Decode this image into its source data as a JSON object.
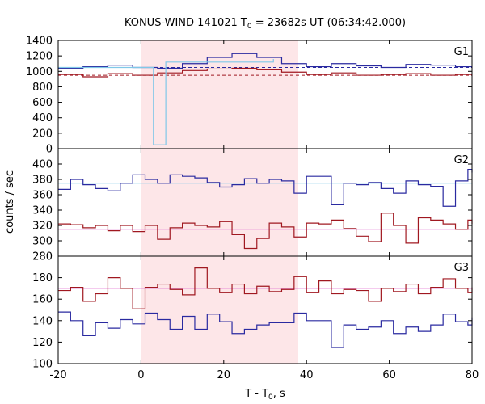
{
  "chart_data": {
    "type": "line",
    "title_main": "KONUS-WIND 141021 T",
    "title_sub": "0",
    "title_rest": " = 23682s UT (06:34:42.000)",
    "xlabel_main": "T - T",
    "xlabel_sub": "0",
    "xlabel_rest": ", s",
    "ylabel": "counts / sec",
    "xlim": [
      -20,
      80
    ],
    "x_ticks": [
      -20,
      0,
      20,
      40,
      60,
      80
    ],
    "x_tick_labels": [
      "-20",
      "0",
      "20",
      "40",
      "60",
      "80"
    ],
    "highlight": {
      "x0": 0,
      "x1": 38,
      "color": "#fde6e8"
    },
    "colors": {
      "blue": "#2a2aa0",
      "red": "#a01820",
      "cyan": "#80c8e8",
      "pink": "#e070d0"
    },
    "panels": [
      {
        "label": "G1",
        "ylim": [
          0,
          1400
        ],
        "y_ticks": [
          0,
          200,
          400,
          600,
          800,
          1000,
          1200,
          1400
        ],
        "y_tick_labels": [
          "0",
          "200",
          "400",
          "600",
          "800",
          "1000",
          "1200",
          "1400"
        ],
        "bg_lines": [
          {
            "y": 1050,
            "color": "#2a2aa0",
            "dashed": true
          },
          {
            "y": 950,
            "color": "#a01820",
            "dashed": true
          }
        ],
        "series": [
          {
            "color": "#2a2aa0",
            "edges": [
              -20,
              -14,
              -8,
              -2,
              4,
              10,
              16,
              22,
              28,
              34,
              40,
              46,
              52,
              58,
              64,
              70,
              76,
              80
            ],
            "values": [
              1040,
              1060,
              1080,
              1050,
              1040,
              1100,
              1180,
              1230,
              1180,
              1100,
              1060,
              1100,
              1070,
              1050,
              1090,
              1080,
              1060
            ]
          },
          {
            "color": "#a01820",
            "edges": [
              -20,
              -14,
              -8,
              -2,
              4,
              10,
              16,
              22,
              28,
              34,
              40,
              46,
              52,
              58,
              64,
              70,
              76,
              80
            ],
            "values": [
              960,
              930,
              970,
              950,
              980,
              1010,
              1030,
              1040,
              1020,
              990,
              960,
              980,
              950,
              960,
              970,
              950,
              960
            ]
          },
          {
            "color": "#80c8e8",
            "edges": [
              -20,
              3,
              6,
              32
            ],
            "values": [
              1050,
              50,
              1120,
              1160
            ]
          }
        ]
      },
      {
        "label": "G2",
        "ylim": [
          280,
          420
        ],
        "y_ticks": [
          280,
          300,
          320,
          340,
          360,
          380,
          400
        ],
        "y_tick_labels": [
          "280",
          "300",
          "320",
          "340",
          "360",
          "380",
          "400"
        ],
        "bg_lines": [
          {
            "y": 375,
            "color": "#80c8e8",
            "dashed": false
          },
          {
            "y": 315,
            "color": "#e070d0",
            "dashed": false
          }
        ],
        "series": [
          {
            "color": "#2a2aa0",
            "edges": [
              -20,
              -17,
              -14,
              -11,
              -8,
              -5,
              -2,
              1,
              4,
              7,
              10,
              13,
              16,
              19,
              22,
              25,
              28,
              31,
              34,
              37,
              40,
              43,
              46,
              49,
              52,
              55,
              58,
              61,
              64,
              67,
              70,
              73,
              76,
              79,
              80
            ],
            "values": [
              367,
              380,
              373,
              368,
              365,
              375,
              386,
              380,
              375,
              386,
              384,
              382,
              376,
              370,
              373,
              381,
              375,
              380,
              378,
              362,
              384,
              384,
              347,
              375,
              373,
              376,
              368,
              362,
              378,
              373,
              371,
              345,
              378,
              393,
              389
            ]
          },
          {
            "color": "#a01820",
            "edges": [
              -20,
              -17,
              -14,
              -11,
              -8,
              -5,
              -2,
              1,
              4,
              7,
              10,
              13,
              16,
              19,
              22,
              25,
              28,
              31,
              34,
              37,
              40,
              43,
              46,
              49,
              52,
              55,
              58,
              61,
              64,
              67,
              70,
              73,
              76,
              79,
              80
            ],
            "values": [
              322,
              321,
              317,
              320,
              313,
              320,
              312,
              320,
              302,
              317,
              323,
              320,
              318,
              325,
              308,
              290,
              303,
              323,
              318,
              305,
              323,
              322,
              327,
              316,
              306,
              299,
              336,
              320,
              297,
              330,
              327,
              322,
              315,
              327,
              322
            ]
          }
        ]
      },
      {
        "label": "G3",
        "ylim": [
          100,
          200
        ],
        "y_ticks": [
          100,
          120,
          140,
          160,
          180
        ],
        "y_tick_labels": [
          "100",
          "120",
          "140",
          "160",
          "180"
        ],
        "bg_lines": [
          {
            "y": 135,
            "color": "#80c8e8",
            "dashed": false
          },
          {
            "y": 170,
            "color": "#e070d0",
            "dashed": false
          }
        ],
        "series": [
          {
            "color": "#2a2aa0",
            "edges": [
              -20,
              -17,
              -14,
              -11,
              -8,
              -5,
              -2,
              1,
              4,
              7,
              10,
              13,
              16,
              19,
              22,
              25,
              28,
              31,
              34,
              37,
              40,
              43,
              46,
              49,
              52,
              55,
              58,
              61,
              64,
              67,
              70,
              73,
              76,
              79,
              80
            ],
            "values": [
              148,
              140,
              126,
              138,
              133,
              141,
              137,
              147,
              141,
              132,
              144,
              132,
              146,
              139,
              128,
              132,
              136,
              138,
              138,
              147,
              140,
              140,
              115,
              136,
              132,
              134,
              140,
              128,
              134,
              130,
              136,
              146,
              139,
              136,
              143
            ]
          },
          {
            "color": "#a01820",
            "edges": [
              -20,
              -17,
              -14,
              -11,
              -8,
              -5,
              -2,
              1,
              4,
              7,
              10,
              13,
              16,
              19,
              22,
              25,
              28,
              31,
              34,
              37,
              40,
              43,
              46,
              49,
              52,
              55,
              58,
              61,
              64,
              67,
              70,
              73,
              76,
              79,
              80
            ],
            "values": [
              168,
              171,
              158,
              165,
              180,
              170,
              151,
              171,
              174,
              169,
              164,
              189,
              170,
              166,
              174,
              165,
              172,
              167,
              169,
              181,
              166,
              177,
              165,
              169,
              168,
              158,
              170,
              167,
              174,
              165,
              171,
              179,
              170,
              166,
              171
            ]
          }
        ]
      }
    ]
  }
}
